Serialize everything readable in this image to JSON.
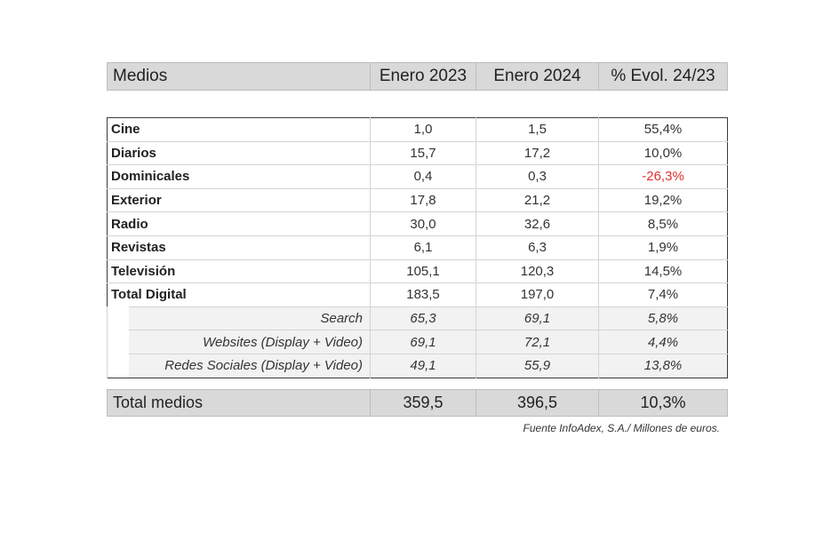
{
  "header": {
    "medios": "Medios",
    "col_2023": "Enero 2023",
    "col_2024": "Enero 2024",
    "col_evol": "% Evol. 24/23"
  },
  "rows": [
    {
      "label": "Cine",
      "v2023": "1,0",
      "v2024": "1,5",
      "evol": "55,4%"
    },
    {
      "label": "Diarios",
      "v2023": "15,7",
      "v2024": "17,2",
      "evol": "10,0%"
    },
    {
      "label": "Dominicales",
      "v2023": "0,4",
      "v2024": "0,3",
      "evol": "-26,3%"
    },
    {
      "label": "Exterior",
      "v2023": "17,8",
      "v2024": "21,2",
      "evol": "19,2%"
    },
    {
      "label": "Radio",
      "v2023": "30,0",
      "v2024": "32,6",
      "evol": "8,5%"
    },
    {
      "label": "Revistas",
      "v2023": "6,1",
      "v2024": "6,3",
      "evol": "1,9%"
    },
    {
      "label": "Televisión",
      "v2023": "105,1",
      "v2024": "120,3",
      "evol": "14,5%"
    },
    {
      "label": "Total Digital",
      "v2023": "183,5",
      "v2024": "197,0",
      "evol": "7,4%"
    }
  ],
  "subrows": [
    {
      "label": "Search",
      "v2023": "65,3",
      "v2024": "69,1",
      "evol": "5,8%"
    },
    {
      "label": "Websites (Display + Video)",
      "v2023": "69,1",
      "v2024": "72,1",
      "evol": "4,4%"
    },
    {
      "label": "Redes Sociales (Display + Video)",
      "v2023": "49,1",
      "v2024": "55,9",
      "evol": "13,8%"
    }
  ],
  "total": {
    "label": "Total medios",
    "v2023": "359,5",
    "v2024": "396,5",
    "evol": "10,3%"
  },
  "source": "Fuente InfoAdex, S.A./ Millones de euros.",
  "colors": {
    "negative": "#e03030",
    "header_bg": "#d9d9d9",
    "subrow_bg": "#f2f2f2"
  }
}
